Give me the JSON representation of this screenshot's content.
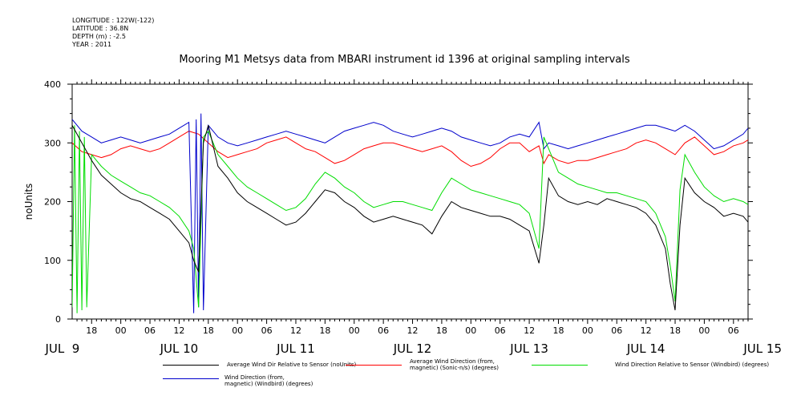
{
  "meta": {
    "longitude": "LONGITUDE : 122W(-122)",
    "latitude": "LATITUDE : 36.8N",
    "depth": "DEPTH (m) : -2.5",
    "year": "YEAR : 2011"
  },
  "chart_data": {
    "type": "line",
    "title": "Mooring M1 Metsys data from MBARI instrument id 1396 at original sampling intervals",
    "ylabel": "noUnits",
    "ylim": [
      0,
      400
    ],
    "y_ticks": [
      0,
      100,
      200,
      300,
      400
    ],
    "x_hour_ticks": [
      "18",
      "00",
      "06",
      "12",
      "18",
      "00",
      "06",
      "12",
      "18",
      "00",
      "06",
      "12",
      "18",
      "00",
      "06",
      "12",
      "18",
      "00",
      "06",
      "12",
      "18",
      "00",
      "06"
    ],
    "x_day_labels": [
      "JUL  9",
      "JUL 10",
      "JUL 11",
      "JUL 12",
      "JUL 13",
      "JUL 14",
      "JUL 15"
    ],
    "x_unit": "hours since JUL 9 00:00",
    "xlim": [
      14,
      153
    ],
    "series": [
      {
        "name": "Average Wind Dir Relative to Sensor (noUnits)",
        "color": "#000000",
        "points": [
          [
            14,
            330
          ],
          [
            16,
            300
          ],
          [
            18,
            270
          ],
          [
            20,
            245
          ],
          [
            22,
            230
          ],
          [
            24,
            215
          ],
          [
            26,
            205
          ],
          [
            28,
            200
          ],
          [
            30,
            190
          ],
          [
            32,
            180
          ],
          [
            34,
            170
          ],
          [
            36,
            150
          ],
          [
            38,
            130
          ],
          [
            39,
            100
          ],
          [
            40,
            80
          ],
          [
            41,
            300
          ],
          [
            42,
            330
          ],
          [
            44,
            260
          ],
          [
            46,
            240
          ],
          [
            48,
            215
          ],
          [
            50,
            200
          ],
          [
            52,
            190
          ],
          [
            54,
            180
          ],
          [
            56,
            170
          ],
          [
            58,
            160
          ],
          [
            60,
            165
          ],
          [
            62,
            180
          ],
          [
            64,
            200
          ],
          [
            66,
            220
          ],
          [
            68,
            215
          ],
          [
            70,
            200
          ],
          [
            72,
            190
          ],
          [
            74,
            175
          ],
          [
            76,
            165
          ],
          [
            78,
            170
          ],
          [
            80,
            175
          ],
          [
            82,
            170
          ],
          [
            84,
            165
          ],
          [
            86,
            160
          ],
          [
            88,
            145
          ],
          [
            90,
            175
          ],
          [
            92,
            200
          ],
          [
            94,
            190
          ],
          [
            96,
            185
          ],
          [
            98,
            180
          ],
          [
            100,
            175
          ],
          [
            102,
            175
          ],
          [
            104,
            170
          ],
          [
            106,
            160
          ],
          [
            108,
            150
          ],
          [
            110,
            95
          ],
          [
            111,
            160
          ],
          [
            112,
            240
          ],
          [
            114,
            210
          ],
          [
            116,
            200
          ],
          [
            118,
            195
          ],
          [
            120,
            200
          ],
          [
            122,
            195
          ],
          [
            124,
            205
          ],
          [
            126,
            200
          ],
          [
            128,
            195
          ],
          [
            130,
            190
          ],
          [
            132,
            180
          ],
          [
            134,
            160
          ],
          [
            136,
            120
          ],
          [
            137,
            60
          ],
          [
            138,
            15
          ],
          [
            139,
            160
          ],
          [
            140,
            240
          ],
          [
            142,
            215
          ],
          [
            144,
            200
          ],
          [
            146,
            190
          ],
          [
            148,
            175
          ],
          [
            150,
            180
          ],
          [
            152,
            175
          ],
          [
            153,
            165
          ]
        ]
      },
      {
        "name": "Average Wind Direction (from, magnetic) (Sonic-n/s) (degrees)",
        "color": "#ff0000",
        "points": [
          [
            14,
            300
          ],
          [
            16,
            285
          ],
          [
            18,
            280
          ],
          [
            20,
            275
          ],
          [
            22,
            280
          ],
          [
            24,
            290
          ],
          [
            26,
            295
          ],
          [
            28,
            290
          ],
          [
            30,
            285
          ],
          [
            32,
            290
          ],
          [
            34,
            300
          ],
          [
            36,
            310
          ],
          [
            38,
            320
          ],
          [
            40,
            315
          ],
          [
            42,
            300
          ],
          [
            44,
            285
          ],
          [
            46,
            275
          ],
          [
            48,
            280
          ],
          [
            50,
            285
          ],
          [
            52,
            290
          ],
          [
            54,
            300
          ],
          [
            56,
            305
          ],
          [
            58,
            310
          ],
          [
            60,
            300
          ],
          [
            62,
            290
          ],
          [
            64,
            285
          ],
          [
            66,
            275
          ],
          [
            68,
            265
          ],
          [
            70,
            270
          ],
          [
            72,
            280
          ],
          [
            74,
            290
          ],
          [
            76,
            295
          ],
          [
            78,
            300
          ],
          [
            80,
            300
          ],
          [
            82,
            295
          ],
          [
            84,
            290
          ],
          [
            86,
            285
          ],
          [
            88,
            290
          ],
          [
            90,
            295
          ],
          [
            92,
            285
          ],
          [
            94,
            270
          ],
          [
            96,
            260
          ],
          [
            98,
            265
          ],
          [
            100,
            275
          ],
          [
            102,
            290
          ],
          [
            104,
            300
          ],
          [
            106,
            300
          ],
          [
            108,
            285
          ],
          [
            110,
            295
          ],
          [
            111,
            265
          ],
          [
            112,
            280
          ],
          [
            114,
            270
          ],
          [
            116,
            265
          ],
          [
            118,
            270
          ],
          [
            120,
            270
          ],
          [
            122,
            275
          ],
          [
            124,
            280
          ],
          [
            126,
            285
          ],
          [
            128,
            290
          ],
          [
            130,
            300
          ],
          [
            132,
            305
          ],
          [
            134,
            300
          ],
          [
            136,
            290
          ],
          [
            138,
            280
          ],
          [
            140,
            300
          ],
          [
            142,
            310
          ],
          [
            144,
            295
          ],
          [
            146,
            280
          ],
          [
            148,
            285
          ],
          [
            150,
            295
          ],
          [
            152,
            300
          ],
          [
            153,
            305
          ]
        ]
      },
      {
        "name": "Wind Direction Relative to Sensor (Windbird) (degrees)",
        "color": "#00dd00",
        "points": [
          [
            14,
            20
          ],
          [
            14.5,
            330
          ],
          [
            15,
            10
          ],
          [
            15.5,
            320
          ],
          [
            16,
            15
          ],
          [
            16.5,
            310
          ],
          [
            17,
            20
          ],
          [
            18,
            280
          ],
          [
            20,
            260
          ],
          [
            22,
            245
          ],
          [
            24,
            235
          ],
          [
            26,
            225
          ],
          [
            28,
            215
          ],
          [
            30,
            210
          ],
          [
            32,
            200
          ],
          [
            34,
            190
          ],
          [
            36,
            175
          ],
          [
            38,
            150
          ],
          [
            39,
            120
          ],
          [
            40,
            20
          ],
          [
            41,
            310
          ],
          [
            42,
            320
          ],
          [
            44,
            280
          ],
          [
            46,
            260
          ],
          [
            48,
            240
          ],
          [
            50,
            225
          ],
          [
            52,
            215
          ],
          [
            54,
            205
          ],
          [
            56,
            195
          ],
          [
            58,
            185
          ],
          [
            60,
            190
          ],
          [
            62,
            205
          ],
          [
            64,
            230
          ],
          [
            66,
            250
          ],
          [
            68,
            240
          ],
          [
            70,
            225
          ],
          [
            72,
            215
          ],
          [
            74,
            200
          ],
          [
            76,
            190
          ],
          [
            78,
            195
          ],
          [
            80,
            200
          ],
          [
            82,
            200
          ],
          [
            84,
            195
          ],
          [
            86,
            190
          ],
          [
            88,
            185
          ],
          [
            90,
            215
          ],
          [
            92,
            240
          ],
          [
            94,
            230
          ],
          [
            96,
            220
          ],
          [
            98,
            215
          ],
          [
            100,
            210
          ],
          [
            102,
            205
          ],
          [
            104,
            200
          ],
          [
            106,
            195
          ],
          [
            108,
            180
          ],
          [
            110,
            120
          ],
          [
            111,
            310
          ],
          [
            112,
            290
          ],
          [
            114,
            250
          ],
          [
            116,
            240
          ],
          [
            118,
            230
          ],
          [
            120,
            225
          ],
          [
            122,
            220
          ],
          [
            124,
            215
          ],
          [
            126,
            215
          ],
          [
            128,
            210
          ],
          [
            130,
            205
          ],
          [
            132,
            200
          ],
          [
            134,
            180
          ],
          [
            136,
            140
          ],
          [
            137,
            90
          ],
          [
            138,
            30
          ],
          [
            139,
            220
          ],
          [
            140,
            280
          ],
          [
            142,
            250
          ],
          [
            144,
            225
          ],
          [
            146,
            210
          ],
          [
            148,
            200
          ],
          [
            150,
            205
          ],
          [
            152,
            200
          ],
          [
            153,
            195
          ]
        ]
      },
      {
        "name": "Wind Direction (from, magnetic) (Windbird) (degrees)",
        "color": "#0000cc",
        "points": [
          [
            14,
            340
          ],
          [
            16,
            320
          ],
          [
            18,
            310
          ],
          [
            20,
            300
          ],
          [
            22,
            305
          ],
          [
            24,
            310
          ],
          [
            26,
            305
          ],
          [
            28,
            300
          ],
          [
            30,
            305
          ],
          [
            32,
            310
          ],
          [
            34,
            315
          ],
          [
            36,
            325
          ],
          [
            38,
            335
          ],
          [
            39,
            10
          ],
          [
            39.5,
            340
          ],
          [
            40,
            20
          ],
          [
            40.5,
            350
          ],
          [
            41,
            15
          ],
          [
            42,
            330
          ],
          [
            44,
            310
          ],
          [
            46,
            300
          ],
          [
            48,
            295
          ],
          [
            50,
            300
          ],
          [
            52,
            305
          ],
          [
            54,
            310
          ],
          [
            56,
            315
          ],
          [
            58,
            320
          ],
          [
            60,
            315
          ],
          [
            62,
            310
          ],
          [
            64,
            305
          ],
          [
            66,
            300
          ],
          [
            68,
            310
          ],
          [
            70,
            320
          ],
          [
            72,
            325
          ],
          [
            74,
            330
          ],
          [
            76,
            335
          ],
          [
            78,
            330
          ],
          [
            80,
            320
          ],
          [
            82,
            315
          ],
          [
            84,
            310
          ],
          [
            86,
            315
          ],
          [
            88,
            320
          ],
          [
            90,
            325
          ],
          [
            92,
            320
          ],
          [
            94,
            310
          ],
          [
            96,
            305
          ],
          [
            98,
            300
          ],
          [
            100,
            295
          ],
          [
            102,
            300
          ],
          [
            104,
            310
          ],
          [
            106,
            315
          ],
          [
            108,
            310
          ],
          [
            110,
            335
          ],
          [
            111,
            290
          ],
          [
            112,
            300
          ],
          [
            114,
            295
          ],
          [
            116,
            290
          ],
          [
            118,
            295
          ],
          [
            120,
            300
          ],
          [
            122,
            305
          ],
          [
            124,
            310
          ],
          [
            126,
            315
          ],
          [
            128,
            320
          ],
          [
            130,
            325
          ],
          [
            132,
            330
          ],
          [
            134,
            330
          ],
          [
            136,
            325
          ],
          [
            138,
            320
          ],
          [
            140,
            330
          ],
          [
            142,
            320
          ],
          [
            144,
            305
          ],
          [
            146,
            290
          ],
          [
            148,
            295
          ],
          [
            150,
            305
          ],
          [
            152,
            315
          ],
          [
            153,
            325
          ]
        ]
      }
    ],
    "legend": [
      {
        "label": "Average Wind Dir Relative to Sensor (noUnits)",
        "color": "#000000"
      },
      {
        "label": "Average Wind Direction (from,\nmagnetic) (Sonic-n/s) (degrees)",
        "color": "#ff0000"
      },
      {
        "label": "Wind Direction Relative to Sensor (Windbird) (degrees)",
        "color": "#00dd00"
      },
      {
        "label": "Wind Direction (from,\nmagnetic) (Windbird) (degrees)",
        "color": "#0000cc"
      }
    ]
  }
}
